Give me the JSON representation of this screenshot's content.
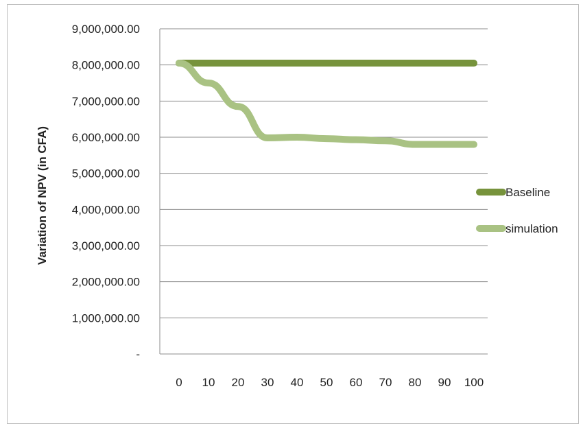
{
  "chart_data": {
    "type": "line",
    "title": "",
    "xlabel": "",
    "ylabel": "Variation of NPV (in CFA)",
    "x": [
      0,
      10,
      20,
      30,
      40,
      50,
      60,
      70,
      80,
      90,
      100
    ],
    "x_tick_labels": [
      "0",
      "10",
      "20",
      "30",
      "40",
      "50",
      "60",
      "70",
      "80",
      "90",
      "100"
    ],
    "y_tick_labels": [
      "-",
      "1,000,000.00",
      "2,000,000.00",
      "3,000,000.00",
      "4,000,000.00",
      "5,000,000.00",
      "6,000,000.00",
      "7,000,000.00",
      "8,000,000.00",
      "9,000,000.00"
    ],
    "ylim": [
      0,
      9000000
    ],
    "grid": true,
    "legend_position": "right",
    "series": [
      {
        "name": "Baseline",
        "color": "#77933c",
        "values": [
          8050000,
          8050000,
          8050000,
          8050000,
          8050000,
          8050000,
          8050000,
          8050000,
          8050000,
          8050000,
          8050000
        ]
      },
      {
        "name": "simulation",
        "color": "#a9c283",
        "values": [
          8050000,
          7500000,
          6850000,
          5980000,
          6000000,
          5960000,
          5930000,
          5900000,
          5800000,
          5800000,
          5800000
        ]
      }
    ]
  }
}
